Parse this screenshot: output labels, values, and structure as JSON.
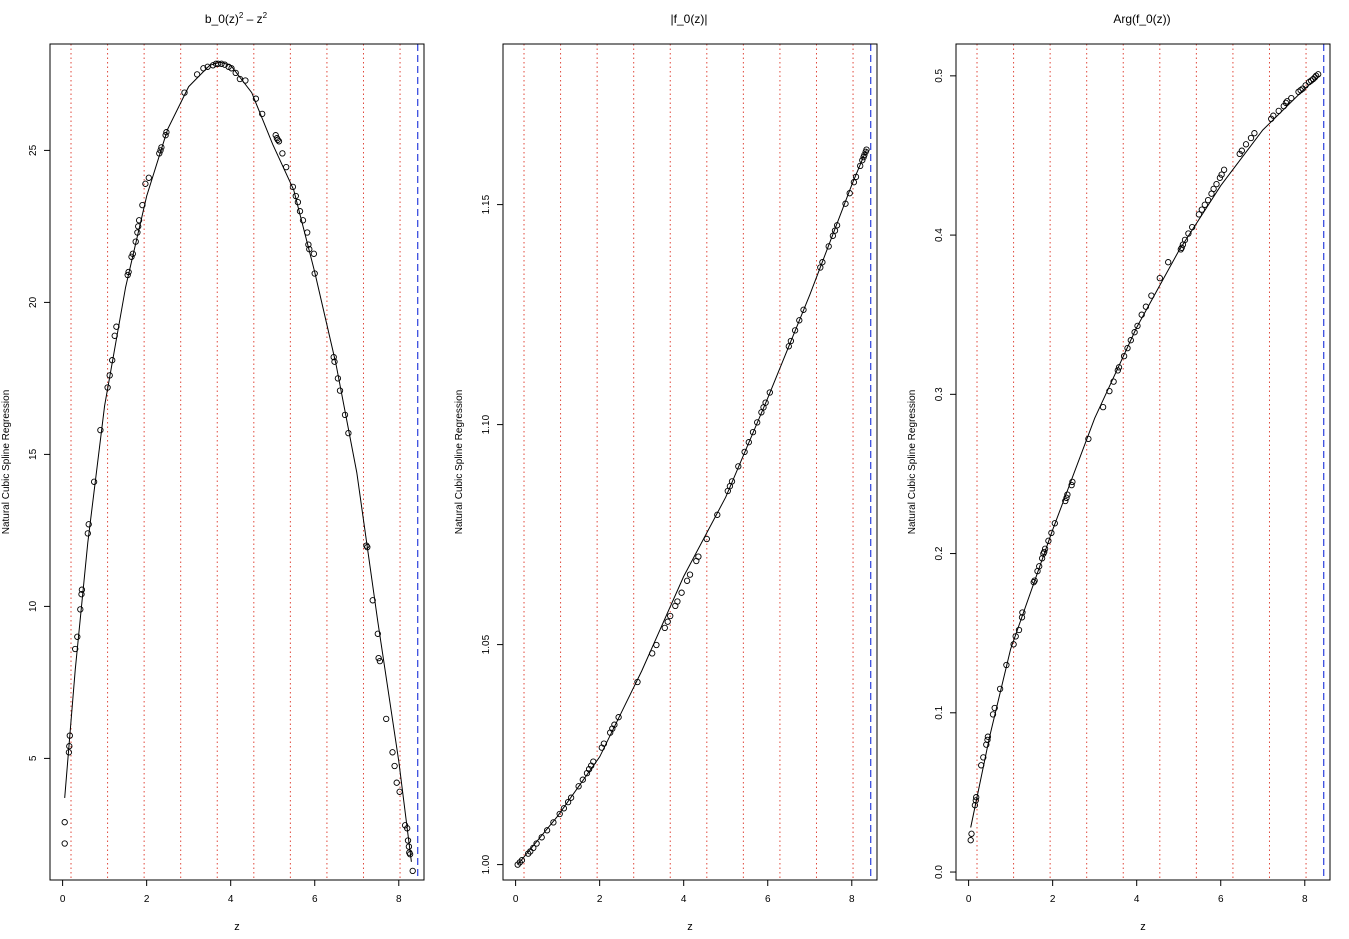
{
  "chart_data": [
    {
      "type": "scatter",
      "title": "b_0(z)² – z²",
      "title_parts": {
        "base1": "b_0(z)",
        "sup1": "2",
        "mid": " – z",
        "sup2": "2"
      },
      "xlabel": "z",
      "ylabel": "Natural Cubic Spline Regression",
      "xlim": [
        -0.3,
        8.6
      ],
      "ylim": [
        1.0,
        28.5
      ],
      "xticks": [
        0,
        2,
        4,
        6,
        8
      ],
      "xtick_labels": [
        "0",
        "2",
        "4",
        "6",
        "8"
      ],
      "yticks": [
        5,
        10,
        15,
        20,
        25
      ],
      "ytick_labels": [
        "5",
        "10",
        "15",
        "20",
        "25"
      ],
      "knots": [
        0.2,
        1.07,
        1.94,
        2.81,
        3.68,
        4.55,
        5.42,
        6.29,
        7.16,
        8.03
      ],
      "boundary": 8.45,
      "points": {
        "x": [
          0.05,
          0.05,
          0.15,
          0.16,
          0.17,
          0.3,
          0.35,
          0.42,
          0.45,
          0.46,
          0.6,
          0.62,
          0.75,
          0.9,
          1.07,
          1.12,
          1.18,
          1.24,
          1.28,
          1.55,
          1.57,
          1.64,
          1.67,
          1.74,
          1.78,
          1.8,
          1.82,
          1.9,
          1.97,
          2.05,
          2.3,
          2.33,
          2.35,
          2.45,
          2.47,
          2.9,
          3.2,
          3.35,
          3.45,
          3.58,
          3.65,
          3.7,
          3.78,
          3.86,
          3.95,
          4.02,
          4.12,
          4.22,
          4.35,
          4.6,
          4.75,
          5.07,
          5.1,
          5.12,
          5.15,
          5.23,
          5.32,
          5.48,
          5.55,
          5.6,
          5.65,
          5.72,
          5.82,
          5.85,
          5.87,
          5.98,
          6.0,
          6.45,
          6.47,
          6.55,
          6.6,
          6.72,
          6.8,
          7.23,
          7.25,
          7.38,
          7.5,
          7.52,
          7.55,
          7.7,
          7.85,
          7.9,
          7.95,
          8.02,
          8.15,
          8.2,
          8.22,
          8.24,
          8.25,
          8.27,
          8.33
        ],
        "y": [
          2.2,
          2.9,
          5.2,
          5.4,
          5.75,
          8.6,
          9.0,
          9.9,
          10.4,
          10.55,
          12.4,
          12.7,
          14.1,
          15.8,
          17.2,
          17.6,
          18.1,
          18.9,
          19.2,
          20.9,
          21.0,
          21.5,
          21.6,
          22.0,
          22.3,
          22.5,
          22.7,
          23.2,
          23.9,
          24.1,
          24.9,
          25.0,
          25.1,
          25.5,
          25.6,
          26.9,
          27.5,
          27.7,
          27.75,
          27.8,
          27.85,
          27.85,
          27.85,
          27.82,
          27.75,
          27.7,
          27.55,
          27.35,
          27.3,
          26.7,
          26.2,
          25.5,
          25.4,
          25.35,
          25.3,
          24.9,
          24.45,
          23.8,
          23.5,
          23.3,
          23.0,
          22.7,
          22.3,
          21.9,
          21.75,
          21.6,
          20.95,
          18.2,
          18.05,
          17.5,
          17.1,
          16.3,
          15.7,
          12.0,
          11.95,
          10.2,
          9.1,
          8.3,
          8.2,
          6.3,
          5.2,
          4.75,
          4.2,
          3.9,
          2.8,
          2.7,
          2.3,
          2.1,
          1.9,
          1.85,
          1.3
        ]
      },
      "fit": {
        "x": [
          0.05,
          0.3,
          0.6,
          1.0,
          1.5,
          2.0,
          2.5,
          3.0,
          3.5,
          3.75,
          4.0,
          4.5,
          5.0,
          5.5,
          6.0,
          6.5,
          7.0,
          7.5,
          8.0,
          8.3
        ],
        "y": [
          3.7,
          7.9,
          12.1,
          16.6,
          20.5,
          23.5,
          25.7,
          27.1,
          27.8,
          27.9,
          27.8,
          26.9,
          25.2,
          23.7,
          21.0,
          18.0,
          14.4,
          9.5,
          4.9,
          1.6
        ]
      }
    },
    {
      "type": "scatter",
      "title": "|f_0(z)|",
      "xlabel": "z",
      "ylabel": "Natural Cubic Spline Regression",
      "xlim": [
        -0.3,
        8.6
      ],
      "ylim": [
        0.9965,
        1.1865
      ],
      "xticks": [
        0,
        2,
        4,
        6,
        8
      ],
      "xtick_labels": [
        "0",
        "2",
        "4",
        "6",
        "8"
      ],
      "yticks": [
        1.0,
        1.05,
        1.1,
        1.15
      ],
      "ytick_labels": [
        "1.00",
        "1.05",
        "1.10",
        "1.15"
      ],
      "knots": [
        0.2,
        1.07,
        1.94,
        2.81,
        3.68,
        4.55,
        5.42,
        6.29,
        7.16,
        8.03
      ],
      "boundary": 8.45,
      "points": {
        "x": [
          0.05,
          0.1,
          0.15,
          0.3,
          0.35,
          0.42,
          0.5,
          0.62,
          0.75,
          0.9,
          1.05,
          1.15,
          1.25,
          1.32,
          1.5,
          1.6,
          1.7,
          1.75,
          1.8,
          1.85,
          2.05,
          2.1,
          2.25,
          2.3,
          2.35,
          2.45,
          2.9,
          3.25,
          3.35,
          3.55,
          3.62,
          3.68,
          3.8,
          3.85,
          3.95,
          4.08,
          4.15,
          4.3,
          4.35,
          4.55,
          4.8,
          5.05,
          5.1,
          5.15,
          5.3,
          5.45,
          5.55,
          5.65,
          5.75,
          5.85,
          5.9,
          5.95,
          6.05,
          6.5,
          6.55,
          6.65,
          6.75,
          6.85,
          7.25,
          7.3,
          7.45,
          7.55,
          7.6,
          7.65,
          7.85,
          7.95,
          8.05,
          8.1,
          8.2,
          8.25,
          8.28,
          8.3,
          8.33,
          8.35
        ],
        "y": [
          1.0,
          1.0005,
          1.001,
          1.0025,
          1.003,
          1.0038,
          1.0048,
          1.0062,
          1.0078,
          1.0096,
          1.0115,
          1.0128,
          1.0142,
          1.0152,
          1.0178,
          1.0193,
          1.0208,
          1.0217,
          1.0225,
          1.0234,
          1.0266,
          1.0275,
          1.03,
          1.0309,
          1.0318,
          1.0335,
          1.0415,
          1.048,
          1.0499,
          1.0538,
          1.0552,
          1.0565,
          1.0588,
          1.0598,
          1.0618,
          1.0645,
          1.0659,
          1.069,
          1.07,
          1.074,
          1.0795,
          1.0849,
          1.086,
          1.0871,
          1.0905,
          1.0938,
          1.096,
          1.0983,
          1.1005,
          1.1028,
          1.1039,
          1.105,
          1.1073,
          1.1178,
          1.119,
          1.1214,
          1.1237,
          1.1261,
          1.1357,
          1.1369,
          1.1405,
          1.1429,
          1.1441,
          1.1453,
          1.1502,
          1.1526,
          1.1551,
          1.1563,
          1.1588,
          1.1601,
          1.1608,
          1.1613,
          1.162,
          1.1625
        ]
      },
      "fit": {
        "x": [
          0.05,
          1.0,
          2.0,
          3.0,
          4.0,
          5.0,
          6.0,
          7.0,
          8.0,
          8.35
        ],
        "y": [
          1.0,
          1.011,
          1.0245,
          1.044,
          1.0655,
          1.0835,
          1.106,
          1.1295,
          1.1545,
          1.1625
        ]
      }
    },
    {
      "type": "scatter",
      "title": "Arg(f_0(z))",
      "xlabel": "z",
      "ylabel": "Natural Cubic Spline Regression",
      "xlim": [
        -0.3,
        8.6
      ],
      "ylim": [
        -0.005,
        0.52
      ],
      "xticks": [
        0,
        2,
        4,
        6,
        8
      ],
      "xtick_labels": [
        "0",
        "2",
        "4",
        "6",
        "8"
      ],
      "yticks": [
        0.0,
        0.1,
        0.2,
        0.3,
        0.4,
        0.5
      ],
      "ytick_labels": [
        "0.0",
        "0.1",
        "0.2",
        "0.3",
        "0.4",
        "0.5"
      ],
      "knots": [
        0.2,
        1.07,
        1.94,
        2.81,
        3.68,
        4.55,
        5.42,
        6.29,
        7.16,
        8.03
      ],
      "boundary": 8.45,
      "points": {
        "x": [
          0.05,
          0.07,
          0.15,
          0.17,
          0.18,
          0.3,
          0.35,
          0.42,
          0.45,
          0.46,
          0.58,
          0.62,
          0.75,
          0.9,
          1.07,
          1.12,
          1.2,
          1.27,
          1.28,
          1.55,
          1.57,
          1.64,
          1.68,
          1.75,
          1.78,
          1.8,
          1.82,
          1.9,
          1.97,
          2.05,
          2.3,
          2.33,
          2.35,
          2.45,
          2.47,
          2.85,
          3.2,
          3.35,
          3.45,
          3.55,
          3.58,
          3.7,
          3.78,
          3.86,
          3.95,
          4.02,
          4.12,
          4.22,
          4.35,
          4.55,
          4.75,
          5.05,
          5.07,
          5.1,
          5.15,
          5.23,
          5.32,
          5.48,
          5.55,
          5.62,
          5.7,
          5.78,
          5.83,
          5.9,
          5.98,
          6.02,
          6.08,
          6.45,
          6.5,
          6.6,
          6.72,
          6.8,
          7.2,
          7.25,
          7.38,
          7.5,
          7.55,
          7.58,
          7.68,
          7.85,
          7.9,
          7.95,
          8.02,
          8.1,
          8.15,
          8.2,
          8.24,
          8.27,
          8.32
        ],
        "y": [
          0.02,
          0.024,
          0.042,
          0.045,
          0.047,
          0.067,
          0.072,
          0.08,
          0.083,
          0.085,
          0.099,
          0.103,
          0.115,
          0.13,
          0.143,
          0.148,
          0.152,
          0.16,
          0.163,
          0.182,
          0.183,
          0.189,
          0.192,
          0.197,
          0.2,
          0.201,
          0.203,
          0.208,
          0.213,
          0.219,
          0.233,
          0.235,
          0.237,
          0.243,
          0.245,
          0.272,
          0.292,
          0.302,
          0.308,
          0.315,
          0.317,
          0.324,
          0.329,
          0.334,
          0.339,
          0.343,
          0.35,
          0.355,
          0.362,
          0.373,
          0.383,
          0.391,
          0.392,
          0.394,
          0.397,
          0.401,
          0.405,
          0.413,
          0.416,
          0.419,
          0.422,
          0.426,
          0.429,
          0.432,
          0.436,
          0.438,
          0.441,
          0.451,
          0.453,
          0.457,
          0.461,
          0.464,
          0.473,
          0.475,
          0.478,
          0.481,
          0.483,
          0.484,
          0.486,
          0.49,
          0.491,
          0.492,
          0.494,
          0.496,
          0.497,
          0.498,
          0.499,
          0.5,
          0.501
        ]
      },
      "fit": {
        "x": [
          0.05,
          0.5,
          1.0,
          2.0,
          3.0,
          4.0,
          5.0,
          6.0,
          7.0,
          8.0,
          8.35
        ],
        "y": [
          0.028,
          0.085,
          0.14,
          0.215,
          0.285,
          0.342,
          0.39,
          0.431,
          0.466,
          0.492,
          0.5
        ]
      }
    }
  ]
}
